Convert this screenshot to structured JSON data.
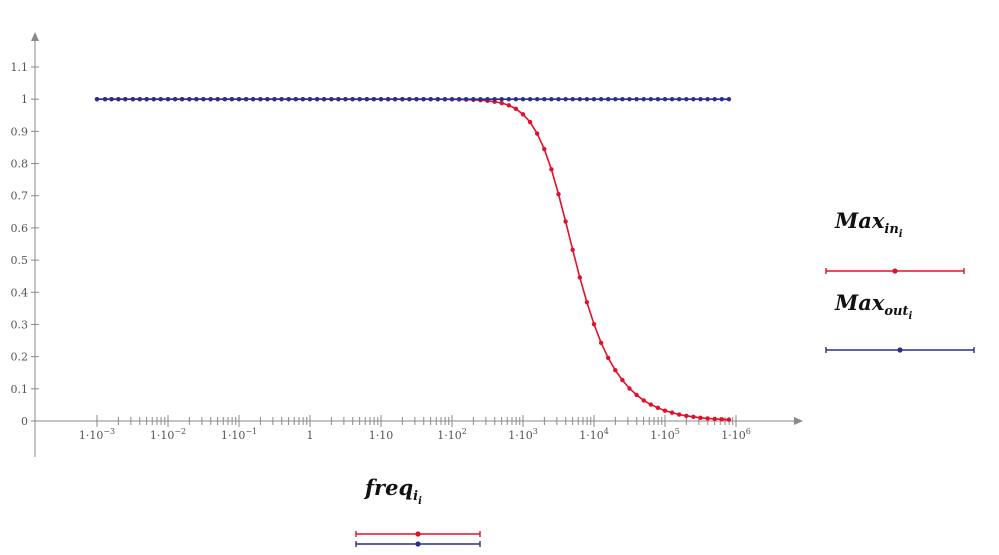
{
  "chart_data": {
    "type": "line",
    "xscale": "log",
    "xlim": [
      0.001,
      1000000
    ],
    "ylim": [
      0,
      1.1
    ],
    "grid": false,
    "y_ticks": [
      {
        "value": 0,
        "label": "0"
      },
      {
        "value": 0.1,
        "label": "0.1"
      },
      {
        "value": 0.2,
        "label": "0.2"
      },
      {
        "value": 0.3,
        "label": "0.3"
      },
      {
        "value": 0.4,
        "label": "0.4"
      },
      {
        "value": 0.5,
        "label": "0.5"
      },
      {
        "value": 0.6,
        "label": "0.6"
      },
      {
        "value": 0.7,
        "label": "0.7"
      },
      {
        "value": 0.8,
        "label": "0.8"
      },
      {
        "value": 0.9,
        "label": "0.9"
      },
      {
        "value": 1,
        "label": "1"
      },
      {
        "value": 1.1,
        "label": "1.1"
      }
    ],
    "x_ticks": [
      {
        "value": 0.001,
        "base": "1·10",
        "exp": "−3"
      },
      {
        "value": 0.01,
        "base": "1·10",
        "exp": "−2"
      },
      {
        "value": 0.1,
        "base": "1·10",
        "exp": "−1"
      },
      {
        "value": 1,
        "base": "1",
        "exp": ""
      },
      {
        "value": 10,
        "base": "1·10",
        "exp": ""
      },
      {
        "value": 100,
        "base": "1·10",
        "exp": "2"
      },
      {
        "value": 1000,
        "base": "1·10",
        "exp": "3"
      },
      {
        "value": 10000,
        "base": "1·10",
        "exp": "4"
      },
      {
        "value": 100000,
        "base": "1·10",
        "exp": "5"
      },
      {
        "value": 1000000,
        "base": "1·10",
        "exp": "6"
      }
    ],
    "x": [
      0.001,
      0.0013,
      0.0016,
      0.002,
      0.0025,
      0.0032,
      0.004,
      0.005,
      0.0063,
      0.0079,
      0.01,
      0.0126,
      0.0158,
      0.02,
      0.0251,
      0.0316,
      0.0398,
      0.0501,
      0.0631,
      0.0794,
      0.1,
      0.126,
      0.158,
      0.2,
      0.251,
      0.316,
      0.398,
      0.501,
      0.631,
      0.794,
      1,
      1.26,
      1.58,
      2,
      2.51,
      3.16,
      3.98,
      5.01,
      6.31,
      7.94,
      10,
      12.6,
      15.8,
      20,
      25.1,
      31.6,
      39.8,
      50.1,
      63.1,
      79.4,
      100,
      126,
      158,
      200,
      251,
      316,
      398,
      501,
      631,
      794,
      1000,
      1259,
      1585,
      1995,
      2512,
      3162,
      3981,
      5012,
      6310,
      7943,
      10000,
      12589,
      15849,
      19953,
      25119,
      31623,
      39811,
      50119,
      63096,
      79433,
      100000,
      125893,
      158489,
      199526,
      251189,
      316228,
      398107,
      501187,
      630957,
      794328
    ],
    "series": [
      {
        "label_main": "Max",
        "label_sub": "in",
        "label_subsub": "i",
        "color": "#e3102b",
        "values": [
          1,
          1,
          1,
          1,
          1,
          1,
          1,
          1,
          1,
          1,
          1,
          1,
          1,
          1,
          1,
          1,
          1,
          1,
          1,
          1,
          1,
          1,
          1,
          1,
          1,
          1,
          1,
          1,
          1,
          1,
          1,
          1,
          1,
          1,
          1,
          1,
          1,
          1,
          1,
          1,
          1,
          1,
          1,
          1,
          1,
          1,
          1,
          0.9999,
          0.9998,
          0.9997,
          0.9995,
          0.9992,
          0.9988,
          0.998,
          0.997,
          0.995,
          0.992,
          0.988,
          0.981,
          0.97,
          0.953,
          0.929,
          0.893,
          0.845,
          0.782,
          0.705,
          0.62,
          0.532,
          0.446,
          0.369,
          0.301,
          0.243,
          0.196,
          0.158,
          0.127,
          0.101,
          0.081,
          0.064,
          0.051,
          0.041,
          0.032,
          0.026,
          0.02,
          0.016,
          0.013,
          0.01,
          0.008,
          0.0064,
          0.0051,
          0.004
        ]
      },
      {
        "label_main": "Max",
        "label_sub": "out",
        "label_subsub": "i",
        "color": "#2b2f8c",
        "values": [
          1,
          1,
          1,
          1,
          1,
          1,
          1,
          1,
          1,
          1,
          1,
          1,
          1,
          1,
          1,
          1,
          1,
          1,
          1,
          1,
          1,
          1,
          1,
          1,
          1,
          1,
          1,
          1,
          1,
          1,
          1,
          1,
          1,
          1,
          1,
          1,
          1,
          1,
          1,
          1,
          1,
          1,
          1,
          1,
          1,
          1,
          1,
          1,
          1,
          1,
          1,
          1,
          1,
          1,
          1,
          1,
          1,
          1,
          1,
          1,
          1,
          1,
          1,
          1,
          1,
          1,
          1,
          1,
          1,
          1,
          1,
          1,
          1,
          1,
          1,
          1,
          1,
          1,
          1,
          1,
          1,
          1,
          1,
          1,
          1,
          1,
          1,
          1,
          1,
          1
        ]
      }
    ],
    "x_legend": {
      "label_main": "freq",
      "label_sub": "i",
      "label_subsub": "i"
    }
  }
}
